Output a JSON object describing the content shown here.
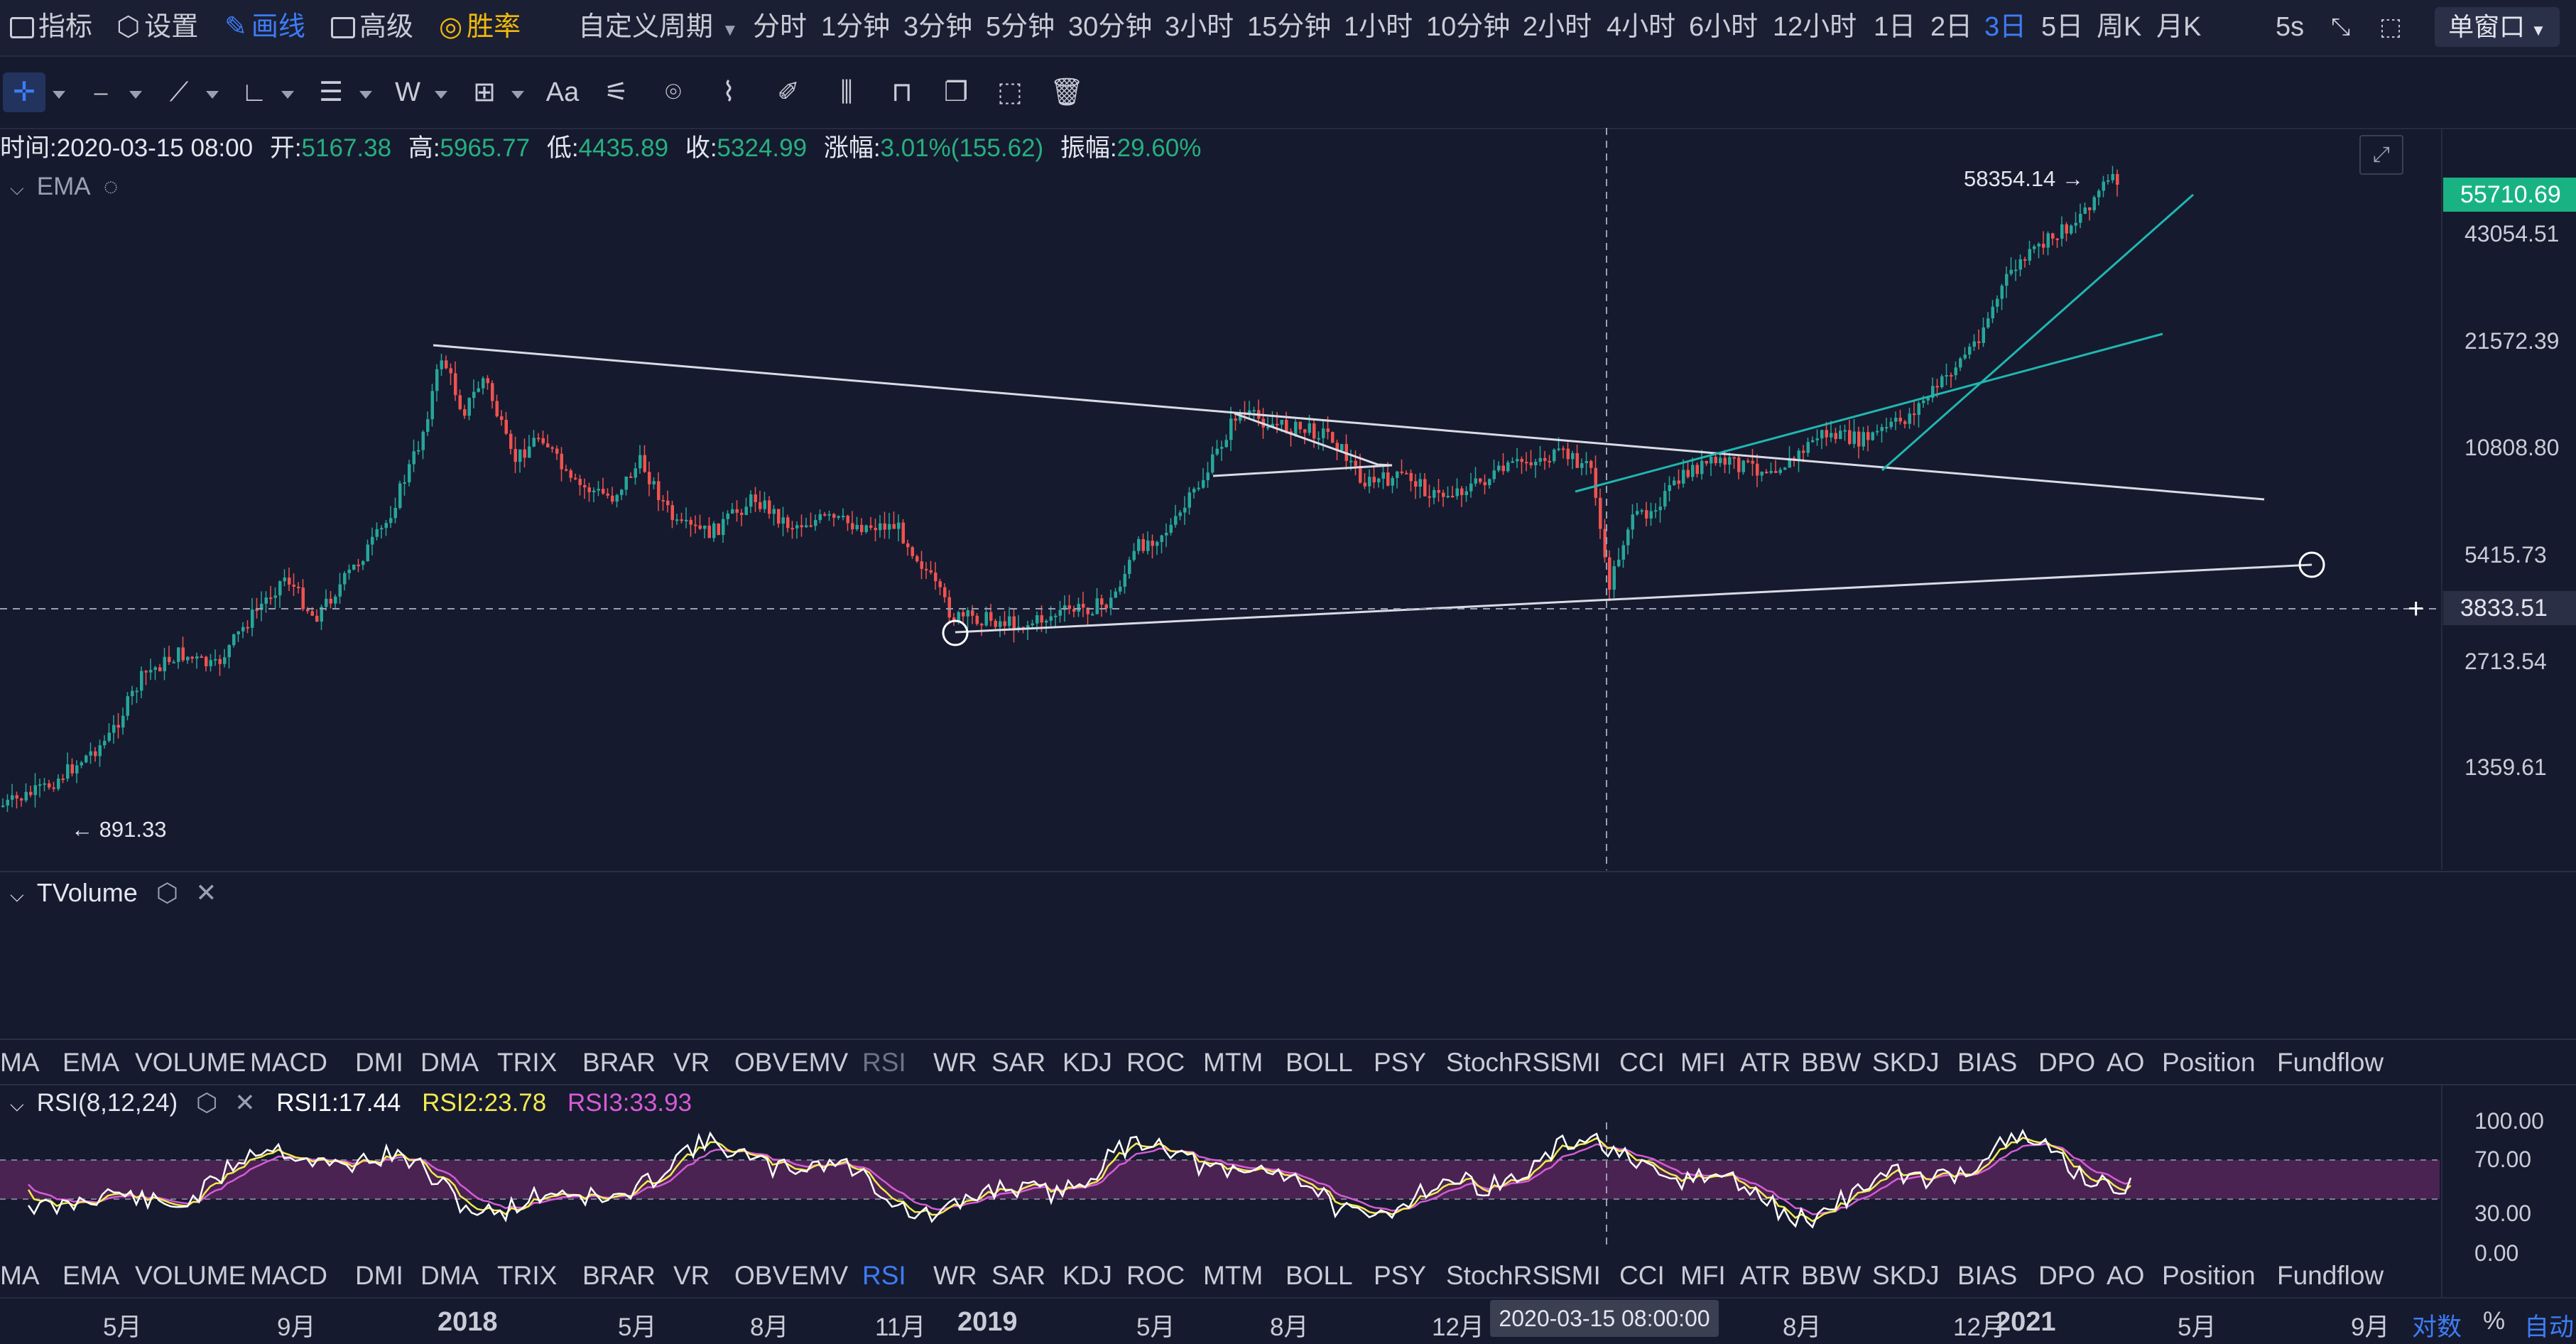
{
  "topbar": {
    "indicators_label": "指标",
    "settings_label": "设置",
    "draw_label": "画线",
    "advanced_label": "高级",
    "winrate_label": "胜率",
    "custom_period_label": "自定义周期",
    "periods": [
      "分时",
      "1分钟",
      "3分钟",
      "5分钟",
      "30分钟",
      "3小时",
      "15分钟",
      "1小时",
      "10分钟",
      "2小时",
      "4小时",
      "6小时",
      "12小时",
      "1日",
      "2日",
      "3日",
      "5日",
      "周K",
      "月K"
    ],
    "active_period": "3日",
    "refresh_rate": "5s",
    "window_mode": "单窗口"
  },
  "toolbar": {
    "text_tool_label": "Aa",
    "tools": [
      "crosshair",
      "horizontal-ray",
      "trend-lines",
      "angle",
      "parallel-lines",
      "wave",
      "measure",
      "text",
      "pattern",
      "magnet",
      "ruler",
      "brush",
      "fib",
      "lock",
      "copy",
      "select",
      "delete"
    ]
  },
  "ohlc": {
    "time_label": "时间:",
    "time": "2020-03-15 08:00",
    "open_label": "开:",
    "open": "5167.38",
    "high_label": "高:",
    "high": "5965.77",
    "low_label": "低:",
    "low": "4435.89",
    "close_label": "收:",
    "close": "5324.99",
    "change_label": "涨幅:",
    "change": "3.01%(155.62)",
    "amplitude_label": "振幅:",
    "amplitude": "29.60%"
  },
  "main_indicator": {
    "name": "EMA"
  },
  "price_axis": {
    "labels": [
      "43054.51",
      "21572.39",
      "10808.80",
      "5415.73",
      "2713.54",
      "1359.61"
    ],
    "current_price": "55710.69",
    "crosshair_price": "3833.51",
    "current_price_color": "#19b383"
  },
  "annotations": {
    "high_mark": "58354.14",
    "low_mark": "891.33"
  },
  "volume_panel": {
    "title": "TVolume"
  },
  "indicator_tabs": [
    "MA",
    "EMA",
    "VOLUME",
    "MACD",
    "DMI",
    "DMA",
    "TRIX",
    "BRAR",
    "VR",
    "OBV",
    "EMV",
    "RSI",
    "WR",
    "SAR",
    "KDJ",
    "ROC",
    "MTM",
    "BOLL",
    "PSY",
    "StochRSI",
    "SMI",
    "CCI",
    "MFI",
    "ATR",
    "BBW",
    "SKDJ",
    "BIAS",
    "DPO",
    "AO",
    "Position",
    "Fundflow"
  ],
  "rsi_panel": {
    "title": "RSI(8,12,24)",
    "rsi1_label": "RSI1:17.44",
    "rsi2_label": "RSI2:23.78",
    "rsi3_label": "RSI3:33.93",
    "axis": [
      "100.00",
      "70.00",
      "30.00",
      "0.00"
    ],
    "colors": {
      "rsi1": "#ffffff",
      "rsi2": "#f2e94e",
      "rsi3": "#d65bd6",
      "band": "#4a2352"
    }
  },
  "time_axis": {
    "labels": [
      "5月",
      "9月",
      "2018",
      "5月",
      "8月",
      "11月",
      "2019",
      "5月",
      "8月",
      "12月",
      "8月",
      "12月",
      "2021",
      "5月",
      "9月"
    ],
    "crosshair_time": "2020-03-15 08:00:00",
    "log_label": "对数",
    "percent_label": "%",
    "auto_label": "自动"
  },
  "colors": {
    "up": "#26a69a",
    "down": "#ef5350",
    "background": "#161a2e",
    "accent": "#3d7cf5"
  }
}
